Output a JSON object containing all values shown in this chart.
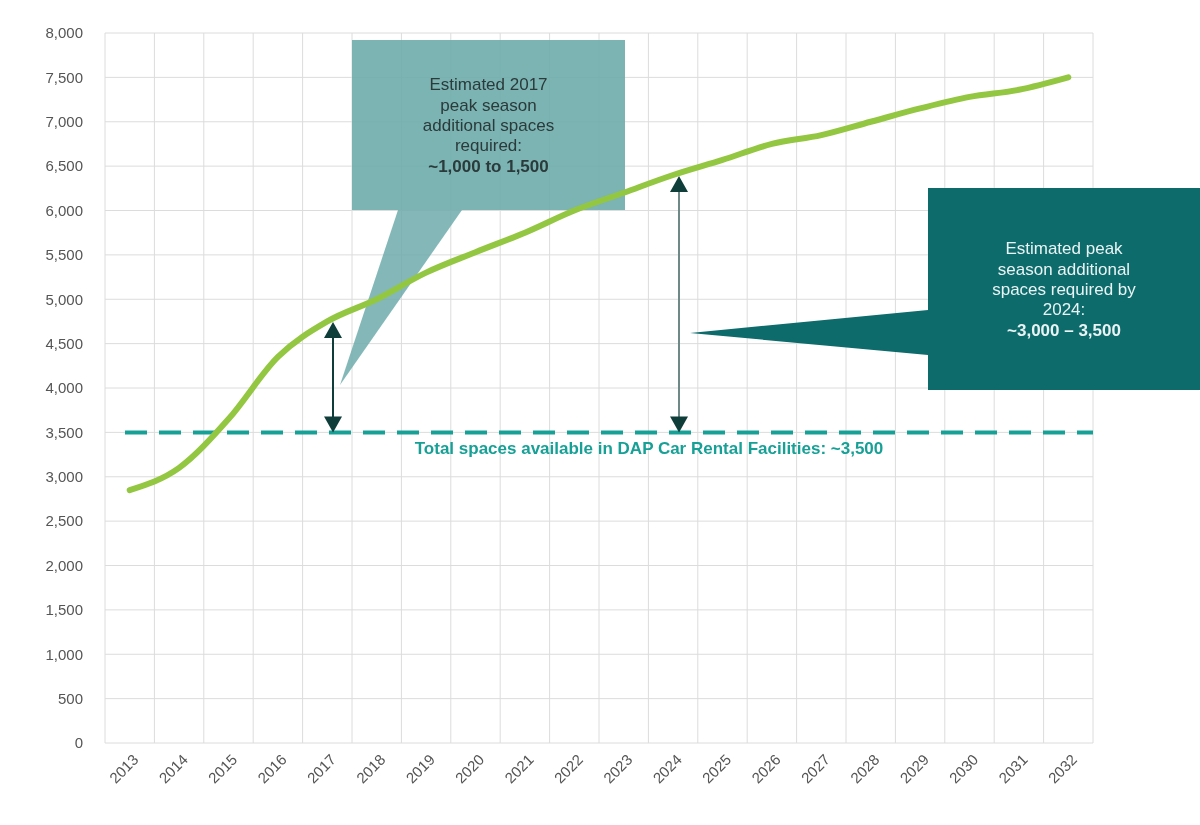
{
  "chart_data": {
    "type": "line",
    "categories": [
      "2013",
      "2014",
      "2015",
      "2016",
      "2017",
      "2018",
      "2019",
      "2020",
      "2021",
      "2022",
      "2023",
      "2024",
      "2025",
      "2026",
      "2027",
      "2028",
      "2029",
      "2030",
      "2031",
      "2032"
    ],
    "series": [
      {
        "color": "#93c741",
        "values": [
          2850,
          3100,
          3650,
          4350,
          4750,
          5000,
          5300,
          5530,
          5750,
          6000,
          6200,
          6400,
          6570,
          6750,
          6850,
          7000,
          7150,
          7280,
          7360,
          7500
        ]
      }
    ],
    "ylim": [
      0,
      8000
    ],
    "yticks": [
      {
        "value": 0,
        "label": "0"
      },
      {
        "value": 500,
        "label": "500"
      },
      {
        "value": 1000,
        "label": "1,000"
      },
      {
        "value": 1500,
        "label": "1,500"
      },
      {
        "value": 2000,
        "label": "2,000"
      },
      {
        "value": 2500,
        "label": "2,500"
      },
      {
        "value": 3000,
        "label": "3,000"
      },
      {
        "value": 3500,
        "label": "3,500"
      },
      {
        "value": 4000,
        "label": "4,000"
      },
      {
        "value": 4500,
        "label": "4,500"
      },
      {
        "value": 5000,
        "label": "5,000"
      },
      {
        "value": 5500,
        "label": "5,500"
      },
      {
        "value": 6000,
        "label": "6,000"
      },
      {
        "value": 6500,
        "label": "6,500"
      },
      {
        "value": 7000,
        "label": "7,000"
      },
      {
        "value": 7500,
        "label": "7,500"
      },
      {
        "value": 8000,
        "label": "8,000"
      }
    ],
    "grid": true,
    "marker": "none",
    "line_style": "solid",
    "ref_lines": [
      {
        "axis": "y",
        "value": 3500,
        "label": "Total spaces available  in DAP Car Rental Facilities:  ~3,500",
        "color": "#16a096",
        "line_style": "dashed"
      }
    ],
    "annotations": [
      "Estimated 2017\npeak season\nadditional spaces\nrequired:\n~1,000 to 1,500",
      "Estimated peak\nseason additional\nspaces required by\n2024:\n~3,000 – 3,500"
    ]
  }
}
